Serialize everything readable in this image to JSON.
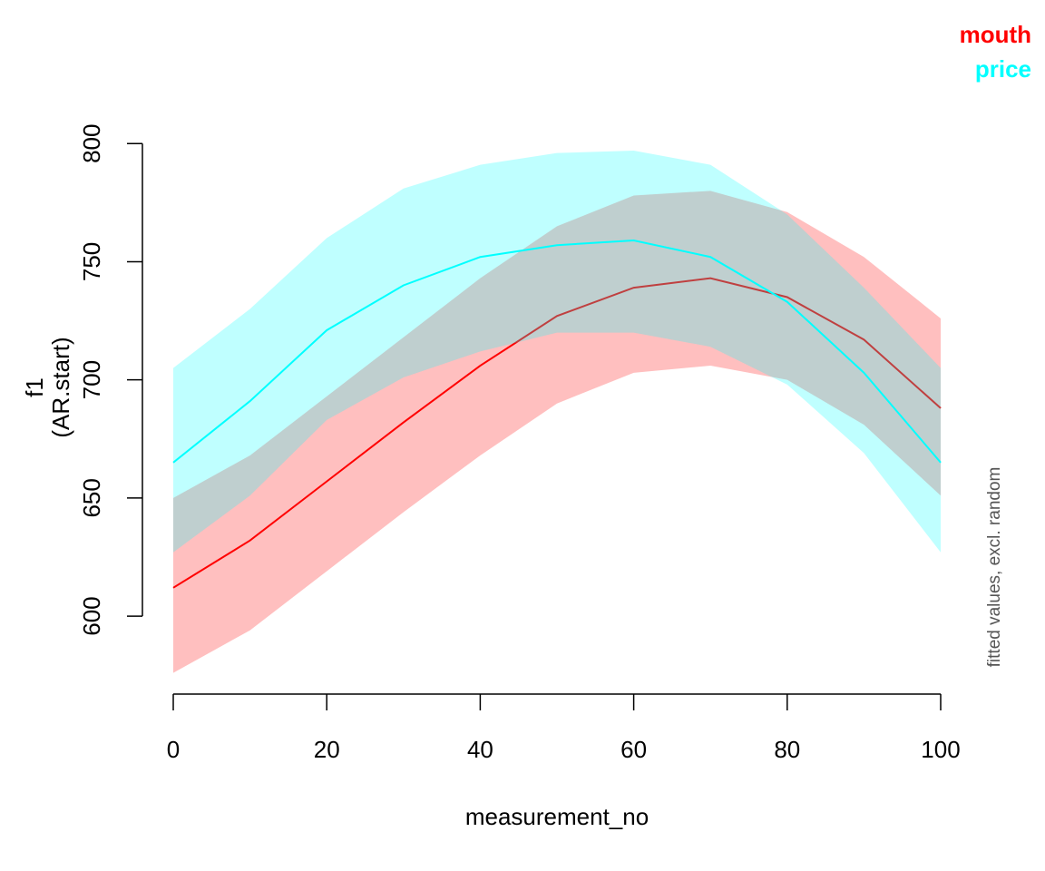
{
  "chart_data": {
    "type": "line",
    "xlabel": "measurement_no",
    "ylabel": [
      "f1",
      "(AR.start)"
    ],
    "side_note": "fitted values, excl. random",
    "x": [
      0,
      10,
      20,
      30,
      40,
      50,
      60,
      70,
      80,
      90,
      100
    ],
    "series": [
      {
        "name": "mouth",
        "color": "#ff0000",
        "values": [
          612,
          632,
          657,
          682,
          706,
          727,
          739,
          743,
          735,
          717,
          688
        ],
        "lower": [
          576,
          594,
          619,
          644,
          668,
          690,
          703,
          706,
          700,
          681,
          651
        ],
        "upper": [
          650,
          668,
          693,
          718,
          743,
          765,
          778,
          780,
          771,
          752,
          726
        ]
      },
      {
        "name": "price",
        "color": "#00ffff",
        "values": [
          665,
          691,
          721,
          740,
          752,
          757,
          759,
          752,
          733,
          703,
          665
        ],
        "lower": [
          627,
          651,
          683,
          701,
          712,
          720,
          720,
          714,
          698,
          669,
          627
        ],
        "upper": [
          705,
          730,
          760,
          781,
          791,
          796,
          797,
          791,
          770,
          739,
          705
        ]
      }
    ],
    "band_opacity": 0.25,
    "xlim": [
      0,
      100
    ],
    "xticks": [
      0,
      20,
      40,
      60,
      80,
      100
    ],
    "ylim": [
      567,
      807
    ],
    "yticks": [
      600,
      650,
      700,
      750,
      800
    ],
    "legend": "top-right"
  }
}
